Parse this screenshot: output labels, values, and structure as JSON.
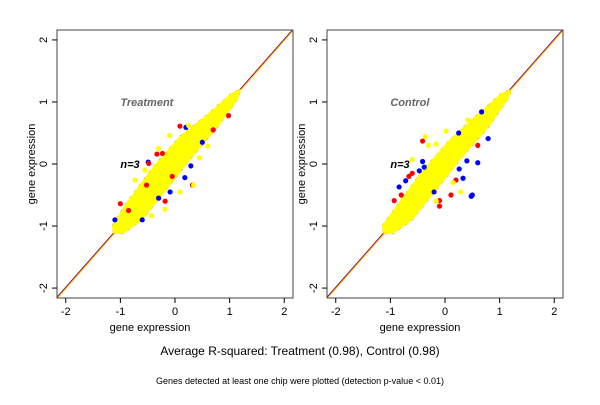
{
  "chart_data": [
    {
      "type": "scatter",
      "panel_label": "Treatment",
      "annotation": "n=3",
      "xlabel": "gene expression",
      "ylabel": "gene expression",
      "xlim": [
        -2.16,
        2.16
      ],
      "ylim": [
        -2.16,
        2.16
      ],
      "xticks": [
        -2,
        -1,
        0,
        1,
        2
      ],
      "yticks": [
        -2,
        -1,
        0,
        1,
        2
      ],
      "grid": false,
      "reference_line": "y = x",
      "core_region": [
        [
          -1.12,
          -1.12
        ],
        [
          -1.15,
          -1.0
        ],
        [
          -0.9,
          -0.65
        ],
        [
          -0.4,
          -0.05
        ],
        [
          0.1,
          0.45
        ],
        [
          0.6,
          0.8
        ],
        [
          1.05,
          1.15
        ],
        [
          1.2,
          1.2
        ],
        [
          1.15,
          1.05
        ],
        [
          0.8,
          0.62
        ],
        [
          0.3,
          0.1
        ],
        [
          -0.1,
          -0.35
        ],
        [
          -0.6,
          -0.9
        ],
        [
          -0.95,
          -1.12
        ]
      ],
      "series": [
        {
          "color": "#0000ff",
          "points": [
            [
              0.2,
              0.59
            ],
            [
              -0.49,
              0.03
            ],
            [
              0.29,
              -0.03
            ],
            [
              0.18,
              -0.22
            ],
            [
              -0.09,
              -0.45
            ],
            [
              -0.6,
              -0.9
            ],
            [
              -1.1,
              -0.9
            ],
            [
              0.5,
              0.35
            ],
            [
              -0.3,
              -0.55
            ]
          ]
        },
        {
          "color": "#ff0000",
          "points": [
            [
              0.09,
              0.61
            ],
            [
              -0.33,
              0.16
            ],
            [
              -0.23,
              0.17
            ],
            [
              -0.48,
              0.01
            ],
            [
              -0.52,
              -0.34
            ],
            [
              -1.0,
              -0.64
            ],
            [
              0.32,
              -0.34
            ],
            [
              0.98,
              0.78
            ],
            [
              -0.18,
              -0.6
            ],
            [
              -0.85,
              -0.75
            ],
            [
              0.7,
              0.55
            ],
            [
              -0.05,
              -0.2
            ]
          ]
        },
        {
          "color": "#ffff00",
          "points": [
            [
              -0.1,
              0.46
            ],
            [
              0.34,
              -0.34
            ],
            [
              -0.18,
              -0.73
            ],
            [
              -0.43,
              -0.83
            ],
            [
              -0.73,
              -0.26
            ],
            [
              0.6,
              0.29
            ],
            [
              0.09,
              -0.45
            ],
            [
              -0.3,
              0.25
            ],
            [
              0.25,
              0.62
            ],
            [
              -0.55,
              -0.1
            ],
            [
              0.45,
              0.1
            ]
          ]
        }
      ]
    },
    {
      "type": "scatter",
      "panel_label": "Control",
      "annotation": "n=3",
      "xlabel": "gene expression",
      "ylabel": "gene expression",
      "xlim": [
        -2.16,
        2.16
      ],
      "ylim": [
        -2.16,
        2.16
      ],
      "xticks": [
        -2,
        -1,
        0,
        1,
        2
      ],
      "yticks": [
        -2,
        -1,
        0,
        1,
        2
      ],
      "grid": false,
      "reference_line": "y = x",
      "core_region": [
        [
          -1.12,
          -1.12
        ],
        [
          -1.15,
          -1.0
        ],
        [
          -0.9,
          -0.7
        ],
        [
          -0.4,
          -0.1
        ],
        [
          0.1,
          0.4
        ],
        [
          0.6,
          0.8
        ],
        [
          1.05,
          1.15
        ],
        [
          1.22,
          1.2
        ],
        [
          1.15,
          1.05
        ],
        [
          0.8,
          0.6
        ],
        [
          0.3,
          0.1
        ],
        [
          -0.1,
          -0.35
        ],
        [
          -0.6,
          -0.9
        ],
        [
          -0.95,
          -1.12
        ]
      ],
      "series": [
        {
          "color": "#0000ff",
          "points": [
            [
              0.6,
              0.02
            ],
            [
              0.48,
              -0.52
            ],
            [
              0.5,
              -0.5
            ],
            [
              -0.84,
              -0.37
            ],
            [
              -0.41,
              0.04
            ],
            [
              -0.38,
              -0.05
            ],
            [
              -0.47,
              -0.11
            ],
            [
              0.79,
              0.41
            ],
            [
              0.26,
              -0.08
            ],
            [
              0.33,
              -0.23
            ],
            [
              -0.72,
              -0.27
            ],
            [
              0.67,
              0.84
            ],
            [
              0.25,
              0.5
            ],
            [
              -0.2,
              -0.45
            ],
            [
              0.4,
              0.05
            ]
          ]
        },
        {
          "color": "#ff0000",
          "points": [
            [
              -0.66,
              -0.2
            ],
            [
              -0.1,
              -0.59
            ],
            [
              -0.1,
              -0.68
            ],
            [
              -0.93,
              -0.59
            ],
            [
              -0.41,
              0.37
            ],
            [
              0.11,
              -0.5
            ],
            [
              0.2,
              -0.26
            ],
            [
              -0.8,
              -0.5
            ],
            [
              0.6,
              0.3
            ],
            [
              -0.6,
              -0.15
            ]
          ]
        },
        {
          "color": "#ffff00",
          "points": [
            [
              0.02,
              0.53
            ],
            [
              -0.36,
              0.44
            ],
            [
              -0.16,
              0.32
            ],
            [
              0.29,
              -0.45
            ],
            [
              -0.16,
              -0.6
            ],
            [
              0.42,
              0.71
            ],
            [
              -0.6,
              0.07
            ],
            [
              -0.3,
              0.3
            ],
            [
              0.15,
              -0.3
            ],
            [
              -0.45,
              -0.2
            ],
            [
              0.55,
              0.55
            ]
          ]
        }
      ]
    }
  ],
  "footer": {
    "summary": "Average R-squared: Treatment (0.98), Control (0.98)",
    "note": "Genes detected at least one chip were plotted (detection p-value < 0.01)"
  }
}
